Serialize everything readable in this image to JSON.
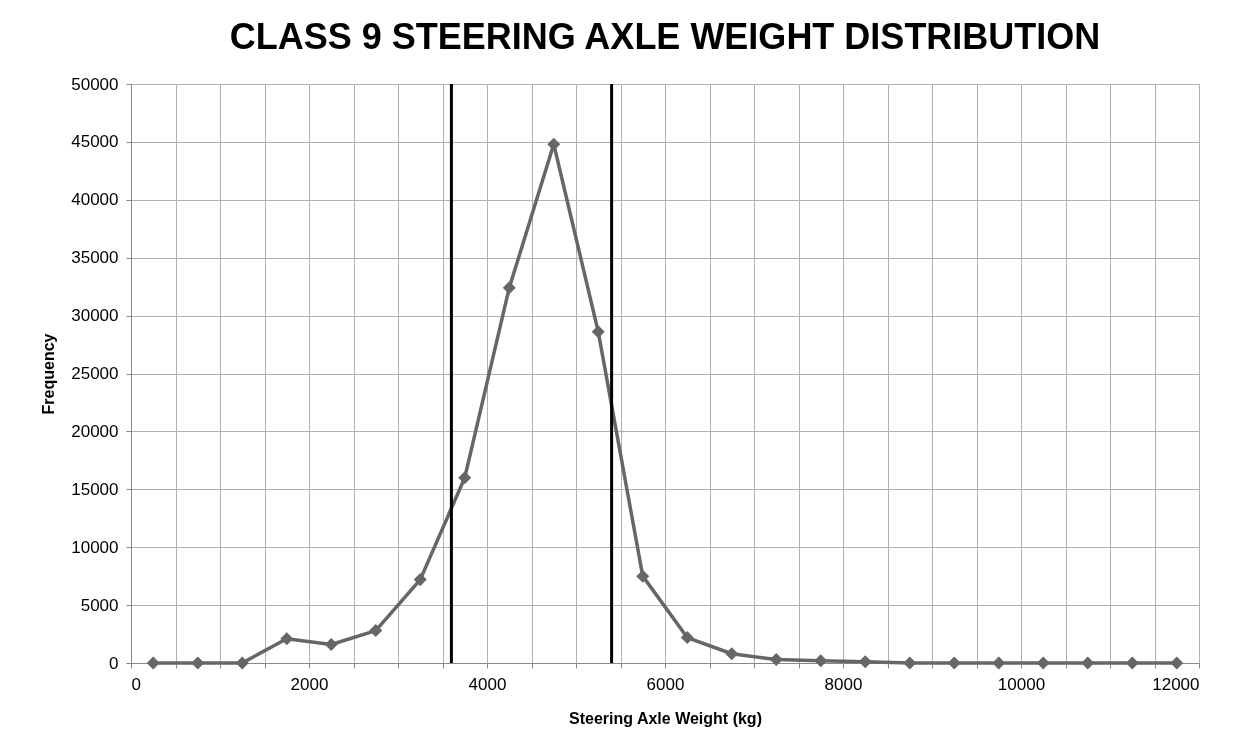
{
  "chart_data": {
    "type": "line",
    "title": "CLASS 9 STEERING AXLE WEIGHT DISTRIBUTION",
    "xlabel": "Steering Axle Weight (kg)",
    "ylabel": "Frequency",
    "x": [
      250,
      750,
      1250,
      1750,
      2250,
      2750,
      3250,
      3750,
      4250,
      4750,
      5250,
      5750,
      6250,
      6750,
      7250,
      7750,
      8250,
      8750,
      9250,
      9750,
      10250,
      10750,
      11250,
      11750
    ],
    "series": [
      {
        "color": "#666666",
        "values": [
          0,
          0,
          0,
          2100,
          1600,
          2800,
          7200,
          16000,
          32400,
          44800,
          28600,
          7500,
          2200,
          800,
          300,
          200,
          100,
          0,
          0,
          0,
          0,
          0,
          0,
          0
        ]
      }
    ],
    "xlim": [
      0,
      12000
    ],
    "xticks": [
      0,
      {
        "value": 500,
        "label": null
      },
      {
        "value": 1000,
        "label": null
      },
      {
        "value": 1500,
        "label": null
      },
      2000,
      {
        "value": 2500,
        "label": null
      },
      {
        "value": 3000,
        "label": null
      },
      {
        "value": 3500,
        "label": null
      },
      4000,
      {
        "value": 4500,
        "label": null
      },
      {
        "value": 5000,
        "label": null
      },
      {
        "value": 5500,
        "label": null
      },
      6000,
      {
        "value": 6500,
        "label": null
      },
      {
        "value": 7000,
        "label": null
      },
      {
        "value": 7500,
        "label": null
      },
      8000,
      {
        "value": 8500,
        "label": null
      },
      {
        "value": 9000,
        "label": null
      },
      {
        "value": 9500,
        "label": null
      },
      10000,
      {
        "value": 10500,
        "label": null
      },
      {
        "value": 11000,
        "label": null
      },
      {
        "value": 11500,
        "label": null
      },
      12000
    ],
    "ylim": [
      0,
      50000
    ],
    "yticks": [
      0,
      5000,
      10000,
      15000,
      20000,
      25000,
      30000,
      35000,
      40000,
      45000,
      50000
    ],
    "ref_lines": [
      {
        "axis": "x",
        "value": 3600,
        "color": "#000000"
      },
      {
        "axis": "x",
        "value": 5400,
        "color": "#000000"
      }
    ],
    "grid": true,
    "marker": "diamond",
    "line_style": "solid"
  }
}
